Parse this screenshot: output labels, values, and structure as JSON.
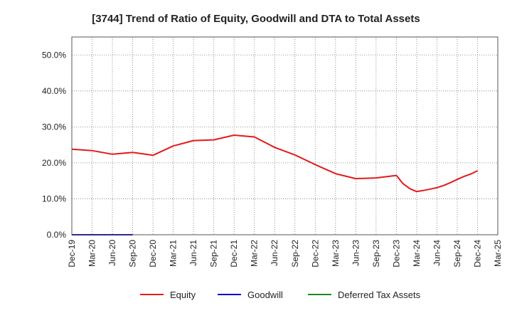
{
  "chart_data": {
    "type": "line",
    "title": "[3744]  Trend of Ratio of Equity, Goodwill and DTA to Total Assets",
    "xlabel": "",
    "ylabel": "",
    "ylim": [
      0,
      0.55
    ],
    "yticks": [
      0.0,
      0.1,
      0.2,
      0.3,
      0.4,
      0.5
    ],
    "ytick_labels": [
      "0.0%",
      "10.0%",
      "20.0%",
      "30.0%",
      "40.0%",
      "50.0%"
    ],
    "xtick_labels": [
      "Dec-19",
      "Mar-20",
      "Jun-20",
      "Sep-20",
      "Dec-20",
      "Mar-21",
      "Jun-21",
      "Sep-21",
      "Dec-21",
      "Mar-22",
      "Jun-22",
      "Sep-22",
      "Dec-22",
      "Mar-23",
      "Jun-23",
      "Sep-23",
      "Dec-23",
      "Mar-24",
      "Jun-24",
      "Sep-24",
      "Dec-24",
      "Mar-25"
    ],
    "grid": true,
    "legend_position": "bottom",
    "series": [
      {
        "name": "Equity",
        "color": "#e31a1c",
        "x": [
          0,
          1,
          2,
          3,
          4,
          5,
          6,
          7,
          8,
          9,
          10,
          11,
          12,
          13,
          14,
          15,
          16,
          16.33,
          16.67,
          17,
          17.33,
          17.67,
          18,
          18.33,
          18.67,
          19,
          19.33,
          19.67,
          20
        ],
        "values": [
          0.238,
          0.234,
          0.224,
          0.229,
          0.221,
          0.247,
          0.262,
          0.264,
          0.277,
          0.272,
          0.243,
          0.222,
          0.195,
          0.17,
          0.156,
          0.158,
          0.165,
          0.142,
          0.128,
          0.12,
          0.123,
          0.127,
          0.131,
          0.137,
          0.145,
          0.154,
          0.162,
          0.169,
          0.178
        ]
      },
      {
        "name": "Goodwill",
        "color": "#0000cc",
        "x": [
          0,
          1,
          2,
          3
        ],
        "values": [
          0.0,
          0.0,
          0.0,
          0.0
        ]
      },
      {
        "name": "Deferred Tax Assets",
        "color": "#1a8c1a",
        "x": [],
        "values": []
      }
    ]
  }
}
